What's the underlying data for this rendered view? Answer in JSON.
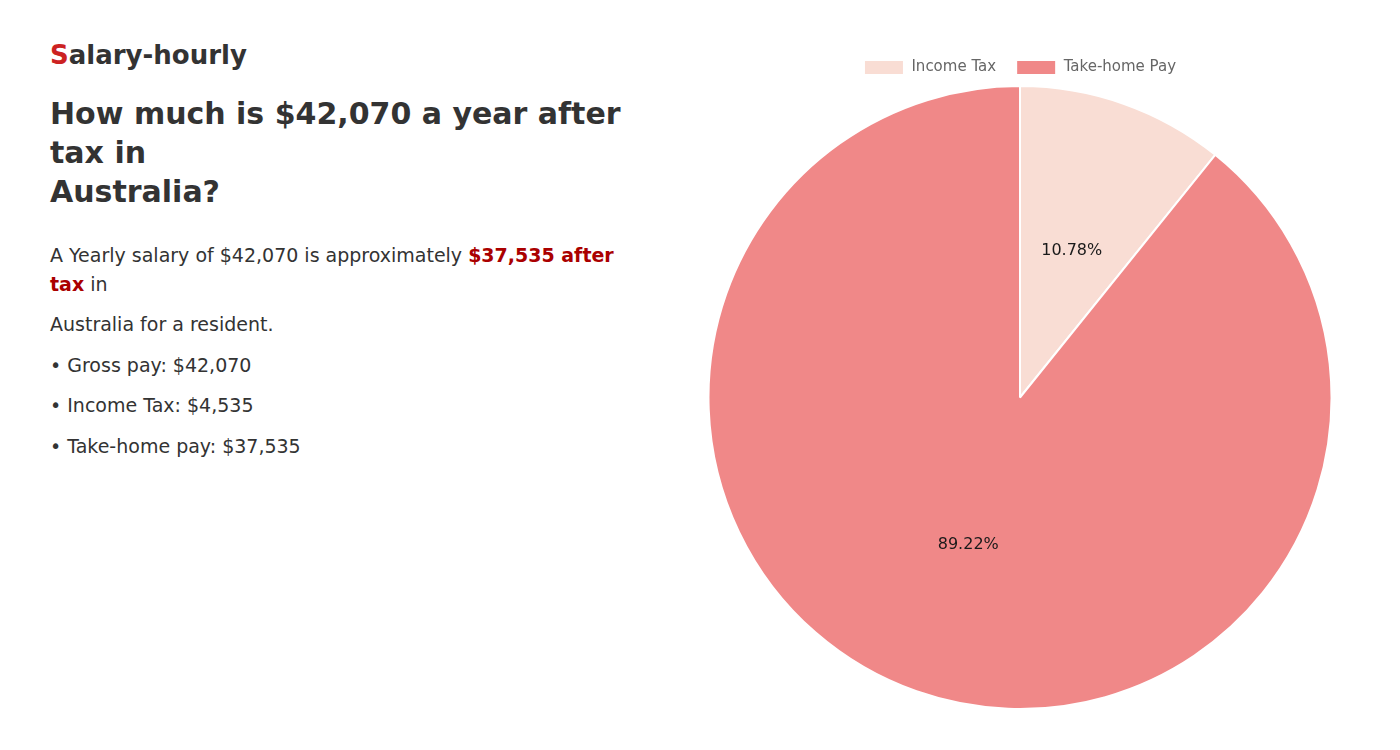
{
  "chart_data": {
    "type": "pie",
    "title": [
      "How much is $42,070 a year after tax in",
      "Australia?"
    ],
    "annotations": [
      [
        {
          "text": "S",
          "color": "#cc2222"
        },
        {
          "text": "alary-hourly"
        }
      ],
      [
        {
          "text": "A Yearly salary of $42,070 is approximately "
        },
        {
          "text": "$37,535 after tax",
          "color": "#aa0000"
        },
        {
          "text": " in"
        }
      ],
      [
        {
          "text": "Australia for a resident."
        }
      ],
      [
        {
          "text": "•  Gross pay: $42,070"
        }
      ],
      [
        {
          "text": "•  Income Tax: $4,535"
        }
      ],
      [
        {
          "text": "•  Take-home pay: $37,535"
        }
      ]
    ],
    "categories": [
      "Income Tax",
      "Take-home Pay"
    ],
    "values": [
      10.78,
      89.22
    ],
    "value_labels": [
      "10.78%",
      "89.22%"
    ],
    "colors": [
      "#f9ddd4",
      "#f08888"
    ],
    "data_labels": true,
    "legend": "top"
  }
}
